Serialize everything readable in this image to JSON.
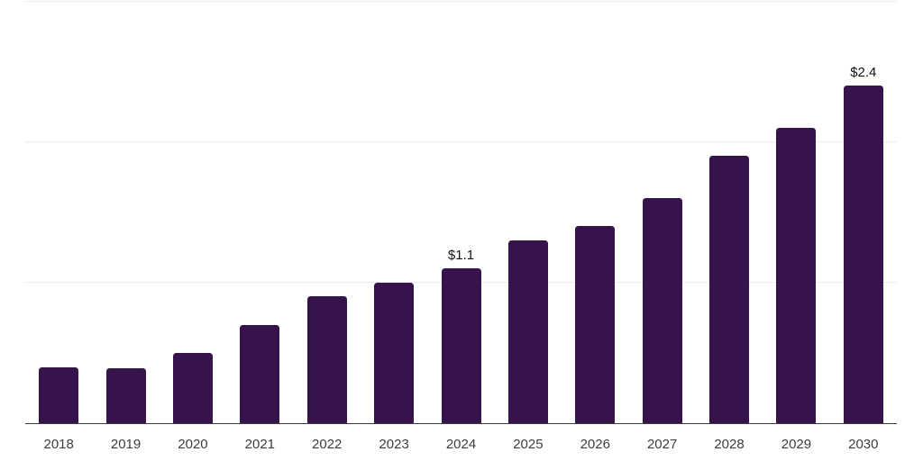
{
  "chart_data": {
    "type": "bar",
    "title": "",
    "xlabel": "",
    "ylabel": "",
    "categories": [
      "2018",
      "2019",
      "2020",
      "2021",
      "2022",
      "2023",
      "2024",
      "2025",
      "2026",
      "2027",
      "2028",
      "2029",
      "2030"
    ],
    "values": [
      0.4,
      0.39,
      0.5,
      0.7,
      0.9,
      1.0,
      1.1,
      1.3,
      1.4,
      1.6,
      1.9,
      2.1,
      2.4
    ],
    "annotations": [
      {
        "category": "2024",
        "label": "$1.1"
      },
      {
        "category": "2030",
        "label": "$2.4"
      }
    ],
    "ylim": [
      0,
      3
    ],
    "gridline_values": [
      1,
      2,
      3
    ],
    "grid": true,
    "legend": false,
    "colors": {
      "bar": "#36134d",
      "gridline": "#ececec",
      "axis_line": "#3c3c3c",
      "tick_label": "#3d3d3d",
      "value_label": "#111111",
      "background": "#ffffff"
    }
  }
}
